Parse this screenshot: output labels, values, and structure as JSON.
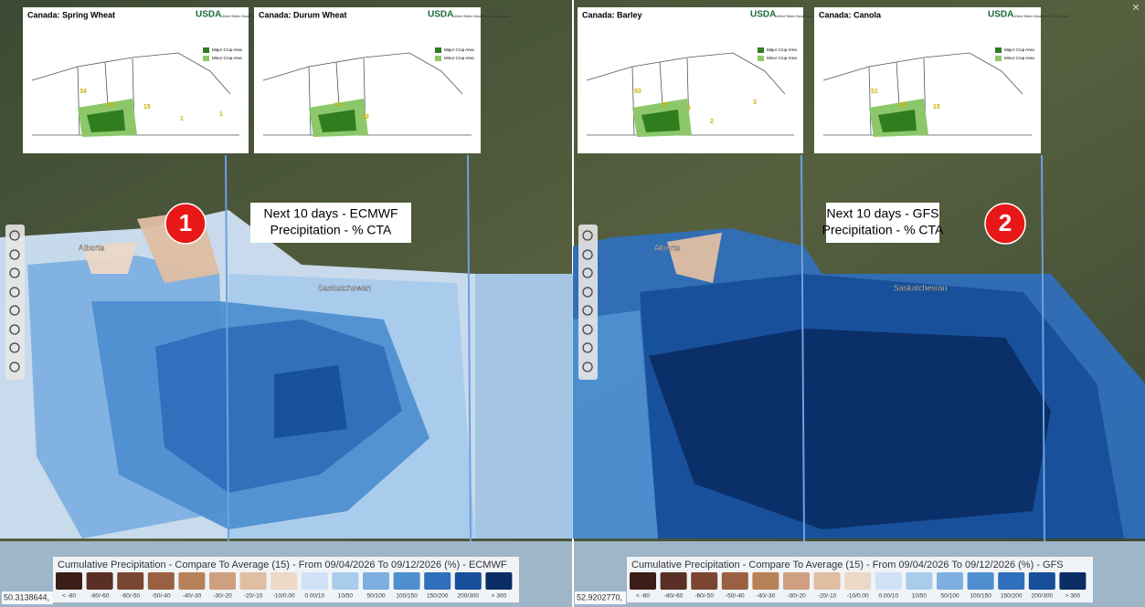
{
  "insets": [
    {
      "title": "Canada:  Spring Wheat",
      "logo": "USDA",
      "agency": "United States Department of Agriculture",
      "legend": [
        "Major Crop Area",
        "Minor Crop Area"
      ],
      "numbers": [
        "34",
        "45",
        "15",
        "1",
        "1"
      ]
    },
    {
      "title": "Canada:  Durum Wheat",
      "logo": "USDA",
      "agency": "United States Department of Agriculture",
      "legend": [
        "Major Crop Area",
        "Minor Crop Area"
      ],
      "numbers": [
        "14",
        "33"
      ]
    },
    {
      "title": "Canada:  Barley",
      "logo": "USDA",
      "agency": "United States Department of Agriculture",
      "legend": [
        "Major Crop Area",
        "Minor Crop Area"
      ],
      "numbers": [
        "50",
        "37",
        "8",
        "2",
        "3"
      ]
    },
    {
      "title": "Canada:  Canola",
      "logo": "USDA",
      "agency": "United States Department of Agriculture",
      "legend": [
        "Major Crop Area",
        "Minor Crop Area"
      ],
      "numbers": [
        "51",
        "45",
        "15"
      ]
    }
  ],
  "panels": [
    {
      "annotation": [
        "Next 10 days - ECMWF",
        "Precipitation - % CTA"
      ],
      "badge": "1",
      "places": [
        "Alberta",
        "Saskatchewan"
      ],
      "legend_title": "Cumulative Precipitation - Compare To Average (15) - From 09/04/2026 To 09/12/2026 (%) - ECMWF",
      "coordinate": "50.3138644,"
    },
    {
      "annotation": [
        "Next 10 days - GFS",
        "Precipitation - % CTA"
      ],
      "badge": "2",
      "places": [
        "Alberta",
        "Saskatchewan"
      ],
      "legend_title": "Cumulative Precipitation - Compare To Average (15) - From 09/04/2026 To 09/12/2026 (%) - GFS",
      "coordinate": "52.9202770,"
    }
  ],
  "classes": {
    "labels": [
      "< -80",
      "-80/-60",
      "-60/-50",
      "-50/-40",
      "-40/-30",
      "-30/-20",
      "-20/-10",
      "-10/0.00",
      "0.00/10",
      "10/50",
      "50/100",
      "100/150",
      "150/200",
      "200/300",
      "> 300"
    ],
    "colors": [
      "#3b1e17",
      "#5a2f25",
      "#7a4632",
      "#996141",
      "#b88259",
      "#cfa07f",
      "#e0bea2",
      "#ecd8c6",
      "#cfe2f5",
      "#a9cbec",
      "#7db0e0",
      "#4f8fd0",
      "#2f6fbb",
      "#174f9a",
      "#0b2d66"
    ]
  },
  "close": "×"
}
